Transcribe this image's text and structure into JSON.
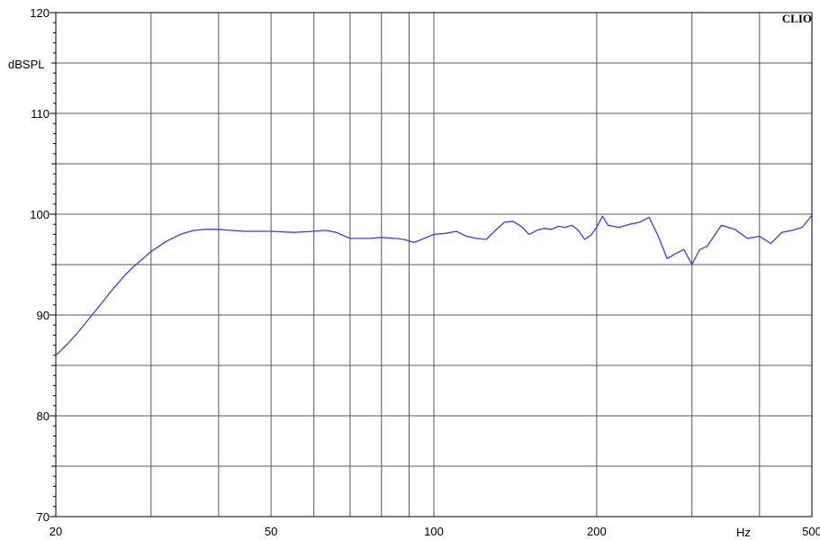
{
  "chart_data": {
    "type": "line",
    "brand": "CLIO",
    "ylabel": "dBSPL",
    "xlabel": "Hz",
    "x_scale": "log",
    "xlim": [
      20,
      500
    ],
    "ylim": [
      70,
      120
    ],
    "grid": true,
    "x_ticks": [
      {
        "value": 20,
        "label": "20"
      },
      {
        "value": 50,
        "label": "50"
      },
      {
        "value": 100,
        "label": "100"
      },
      {
        "value": 200,
        "label": "200"
      },
      {
        "value": 500,
        "label": "500"
      }
    ],
    "x_gridlines": [
      30,
      40,
      50,
      60,
      70,
      80,
      90,
      100,
      200,
      300,
      400
    ],
    "y_ticks": [
      {
        "value": 70,
        "label": "70"
      },
      {
        "value": 80,
        "label": "80"
      },
      {
        "value": 90,
        "label": "90"
      },
      {
        "value": 100,
        "label": "100"
      },
      {
        "value": 110,
        "label": "110"
      },
      {
        "value": 120,
        "label": "120"
      }
    ],
    "y_gridlines": [
      75,
      80,
      85,
      90,
      95,
      100,
      105,
      110,
      115
    ],
    "series": [
      {
        "color": "#3b3bf0",
        "x": [
          20,
          21,
          22,
          23,
          24,
          25,
          26,
          27,
          28,
          29,
          30,
          32,
          34,
          36,
          38,
          40,
          42,
          45,
          48,
          50,
          55,
          60,
          63,
          66,
          70,
          72,
          76,
          80,
          85,
          88,
          92,
          95,
          100,
          105,
          110,
          115,
          120,
          125,
          130,
          135,
          140,
          145,
          150,
          155,
          160,
          165,
          170,
          175,
          180,
          185,
          190,
          195,
          200,
          205,
          210,
          220,
          230,
          240,
          250,
          260,
          270,
          280,
          290,
          300,
          310,
          320,
          340,
          360,
          380,
          400,
          420,
          440,
          460,
          480,
          500
        ],
        "y": [
          86.0,
          87.1,
          88.3,
          89.6,
          90.8,
          92.0,
          93.1,
          94.1,
          94.9,
          95.6,
          96.3,
          97.3,
          98.0,
          98.4,
          98.5,
          98.5,
          98.4,
          98.3,
          98.3,
          98.3,
          98.2,
          98.3,
          98.4,
          98.2,
          97.6,
          97.6,
          97.6,
          97.7,
          97.6,
          97.5,
          97.2,
          97.5,
          98.0,
          98.1,
          98.3,
          97.8,
          97.6,
          97.5,
          98.4,
          99.2,
          99.3,
          98.8,
          98.0,
          98.4,
          98.6,
          98.5,
          98.8,
          98.7,
          98.9,
          98.4,
          97.5,
          97.9,
          98.7,
          99.8,
          98.9,
          98.7,
          99.0,
          99.2,
          99.7,
          97.8,
          95.6,
          96.1,
          96.5,
          95.0,
          96.5,
          96.8,
          98.9,
          98.5,
          97.6,
          97.8,
          97.1,
          98.2,
          98.4,
          98.7,
          99.9
        ]
      }
    ]
  }
}
